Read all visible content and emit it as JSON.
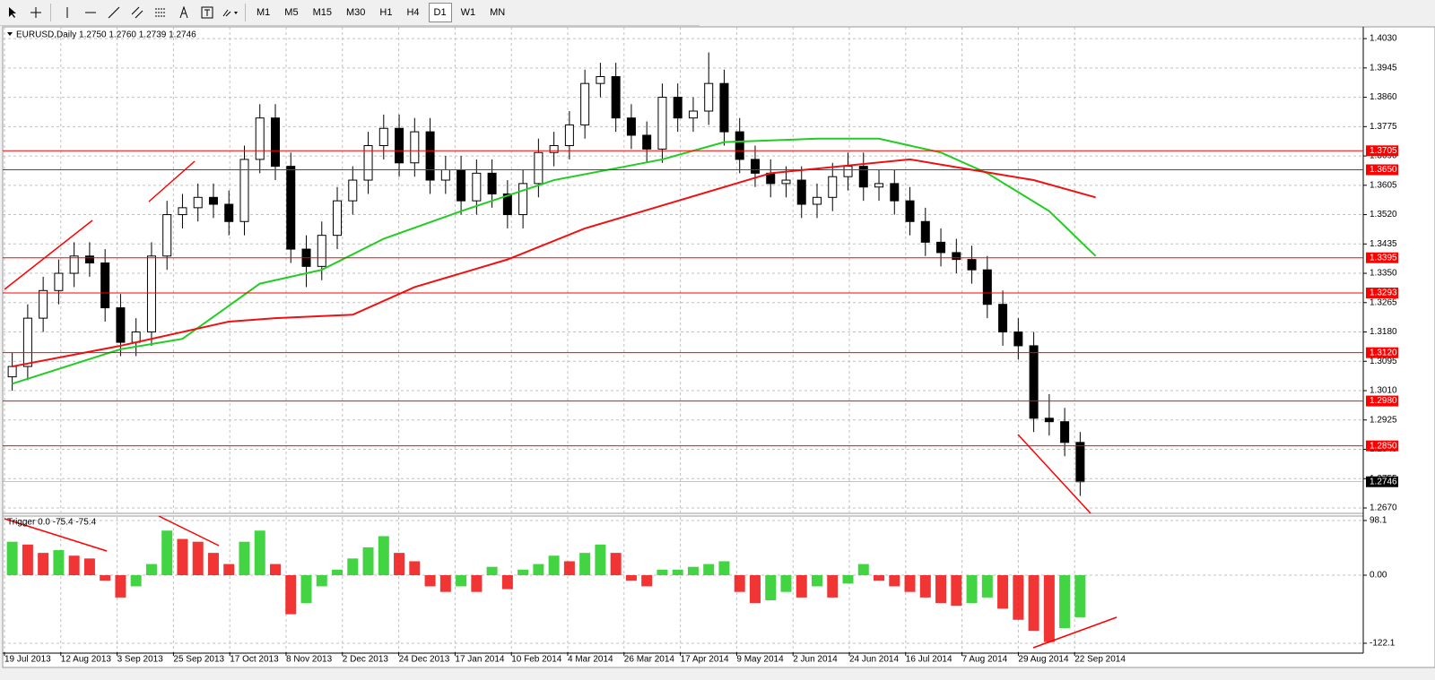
{
  "toolbar": {
    "timeframes": [
      "M1",
      "M5",
      "M15",
      "M30",
      "H1",
      "H4",
      "D1",
      "W1",
      "MN"
    ],
    "active": "D1"
  },
  "chart_data": [
    {
      "type": "candlestick",
      "title": "EURUSD,Daily  1.2750 1.2760 1.2739 1.2746",
      "x_labels": [
        "19 Jul 2013",
        "12 Aug 2013",
        "3 Sep 2013",
        "25 Sep 2013",
        "17 Oct 2013",
        "8 Nov 2013",
        "2 Dec 2013",
        "24 Dec 2013",
        "17 Jan 2014",
        "10 Feb 2014",
        "4 Mar 2014",
        "26 Mar 2014",
        "17 Apr 2014",
        "9 May 2014",
        "2 Jun 2014",
        "24 Jun 2014",
        "16 Jul 2014",
        "7 Aug 2014",
        "29 Aug 2014",
        "22 Sep 2014"
      ],
      "open": [
        1.305,
        1.308,
        1.322,
        1.33,
        1.335,
        1.34,
        1.338,
        1.325,
        1.315,
        1.318,
        1.34,
        1.352,
        1.354,
        1.357,
        1.355,
        1.35,
        1.368,
        1.38,
        1.366,
        1.342,
        1.337,
        1.346,
        1.356,
        1.362,
        1.372,
        1.377,
        1.367,
        1.376,
        1.362,
        1.365,
        1.356,
        1.364,
        1.358,
        1.352,
        1.361,
        1.37,
        1.372,
        1.378,
        1.39,
        1.392,
        1.38,
        1.375,
        1.371,
        1.386,
        1.38,
        1.382,
        1.39,
        1.376,
        1.368,
        1.364,
        1.361,
        1.362,
        1.355,
        1.357,
        1.363,
        1.366,
        1.36,
        1.361,
        1.356,
        1.35,
        1.344,
        1.341,
        1.339,
        1.336,
        1.326,
        1.318,
        1.314,
        1.293,
        1.292,
        1.286
      ],
      "high": [
        1.312,
        1.326,
        1.334,
        1.339,
        1.344,
        1.344,
        1.342,
        1.329,
        1.322,
        1.344,
        1.356,
        1.358,
        1.361,
        1.361,
        1.359,
        1.372,
        1.384,
        1.384,
        1.37,
        1.346,
        1.35,
        1.36,
        1.366,
        1.376,
        1.381,
        1.381,
        1.38,
        1.38,
        1.369,
        1.369,
        1.368,
        1.368,
        1.362,
        1.365,
        1.374,
        1.376,
        1.382,
        1.394,
        1.396,
        1.396,
        1.384,
        1.379,
        1.39,
        1.39,
        1.386,
        1.399,
        1.394,
        1.38,
        1.372,
        1.368,
        1.366,
        1.366,
        1.361,
        1.367,
        1.37,
        1.37,
        1.365,
        1.365,
        1.36,
        1.354,
        1.348,
        1.345,
        1.343,
        1.34,
        1.33,
        1.322,
        1.318,
        1.3,
        1.296,
        1.289
      ],
      "low": [
        1.301,
        1.304,
        1.318,
        1.326,
        1.331,
        1.334,
        1.321,
        1.311,
        1.311,
        1.314,
        1.336,
        1.348,
        1.35,
        1.351,
        1.346,
        1.346,
        1.364,
        1.362,
        1.338,
        1.331,
        1.333,
        1.342,
        1.352,
        1.358,
        1.368,
        1.363,
        1.363,
        1.358,
        1.358,
        1.352,
        1.352,
        1.354,
        1.348,
        1.348,
        1.357,
        1.366,
        1.368,
        1.374,
        1.386,
        1.376,
        1.371,
        1.367,
        1.367,
        1.376,
        1.376,
        1.378,
        1.372,
        1.364,
        1.36,
        1.357,
        1.357,
        1.351,
        1.351,
        1.353,
        1.359,
        1.356,
        1.356,
        1.352,
        1.346,
        1.34,
        1.337,
        1.335,
        1.332,
        1.322,
        1.314,
        1.31,
        1.289,
        1.288,
        1.282,
        1.2705
      ],
      "close": [
        1.308,
        1.322,
        1.33,
        1.335,
        1.34,
        1.338,
        1.325,
        1.315,
        1.318,
        1.34,
        1.352,
        1.354,
        1.357,
        1.355,
        1.35,
        1.368,
        1.38,
        1.366,
        1.342,
        1.337,
        1.346,
        1.356,
        1.362,
        1.372,
        1.377,
        1.367,
        1.376,
        1.362,
        1.365,
        1.356,
        1.364,
        1.358,
        1.352,
        1.361,
        1.37,
        1.372,
        1.378,
        1.39,
        1.392,
        1.38,
        1.375,
        1.371,
        1.386,
        1.38,
        1.382,
        1.39,
        1.376,
        1.368,
        1.364,
        1.361,
        1.362,
        1.355,
        1.357,
        1.363,
        1.366,
        1.36,
        1.361,
        1.356,
        1.35,
        1.344,
        1.341,
        1.339,
        1.336,
        1.326,
        1.318,
        1.314,
        1.293,
        1.292,
        1.286,
        1.2746
      ],
      "up_color": "#ffffff",
      "down_color": "#000000",
      "lines": [
        {
          "color": "#22cc22",
          "x": [
            0,
            7,
            11,
            16,
            20,
            24,
            29,
            35,
            42,
            46,
            52,
            56,
            60,
            63,
            67,
            70
          ],
          "values": [
            1.303,
            1.313,
            1.316,
            1.332,
            1.336,
            1.345,
            1.353,
            1.362,
            1.368,
            1.373,
            1.374,
            1.374,
            1.37,
            1.364,
            1.353,
            1.34
          ]
        },
        {
          "color": "#ee1111",
          "x": [
            0,
            7,
            14,
            17,
            22,
            26,
            32,
            37,
            43,
            49,
            58,
            62,
            66,
            70
          ],
          "values": [
            1.308,
            1.314,
            1.321,
            1.322,
            1.323,
            1.331,
            1.339,
            1.348,
            1.356,
            1.364,
            1.368,
            1.365,
            1.362,
            1.357
          ]
        }
      ],
      "levels": [
        {
          "value": 1.3705,
          "label": "1.3705"
        },
        {
          "value": 1.365,
          "label": "1.3650"
        },
        {
          "value": 1.3395,
          "label": "1.3395"
        },
        {
          "value": 1.3293,
          "label": "1.3293"
        },
        {
          "value": 1.312,
          "label": "1.3120"
        },
        {
          "value": 1.298,
          "label": "1.2980"
        },
        {
          "value": 1.285,
          "label": "1.2850"
        }
      ],
      "level_color": "#ff0000",
      "current": {
        "value": 1.2746,
        "label": "1.2746"
      },
      "ylim": [
        1.2657,
        1.4064
      ],
      "yticks": [
        {
          "value": 1.403,
          "label": "1.4030"
        },
        {
          "value": 1.3945,
          "label": "1.3945"
        },
        {
          "value": 1.386,
          "label": "1.3860"
        },
        {
          "value": 1.3775,
          "label": "1.3775"
        },
        {
          "value": 1.369,
          "label": "1.3690"
        },
        {
          "value": 1.3605,
          "label": "1.3605"
        },
        {
          "value": 1.352,
          "label": "1.3520"
        },
        {
          "value": 1.3435,
          "label": "1.3435"
        },
        {
          "value": 1.335,
          "label": "1.3350"
        },
        {
          "value": 1.3265,
          "label": "1.3265"
        },
        {
          "value": 1.318,
          "label": "1.3180"
        },
        {
          "value": 1.3095,
          "label": "1.3095"
        },
        {
          "value": 1.301,
          "label": "1.3010"
        },
        {
          "value": 1.2925,
          "label": "1.2925"
        },
        {
          "value": 1.284,
          "label": "1.2840"
        },
        {
          "value": 1.2755,
          "label": "1.2755"
        },
        {
          "value": 1.267,
          "label": "1.2670"
        }
      ],
      "grid": true
    },
    {
      "type": "bar",
      "title": "Trigger 0.0 -75.4 -75.4",
      "values": [
        60,
        55,
        40,
        45,
        35,
        30,
        -10,
        -40,
        -20,
        20,
        80,
        65,
        60,
        40,
        20,
        60,
        80,
        20,
        -70,
        -50,
        -20,
        10,
        30,
        50,
        70,
        40,
        25,
        -20,
        -30,
        -20,
        -30,
        15,
        -25,
        10,
        20,
        35,
        25,
        40,
        55,
        40,
        -10,
        -20,
        10,
        10,
        15,
        20,
        25,
        -30,
        -50,
        -45,
        -30,
        -40,
        -20,
        -40,
        -15,
        20,
        -10,
        -20,
        -30,
        -40,
        -50,
        -55,
        -50,
        -40,
        -60,
        -80,
        -100,
        -120,
        -95,
        -75.4
      ],
      "up_color": "#22cc22",
      "down_color": "#ee1111",
      "ylim": [
        -138.2,
        104.5
      ],
      "yticks": [
        98.1,
        {
          "value": 0,
          "label": "0.00"
        },
        -122.1
      ],
      "grid": true
    }
  ]
}
